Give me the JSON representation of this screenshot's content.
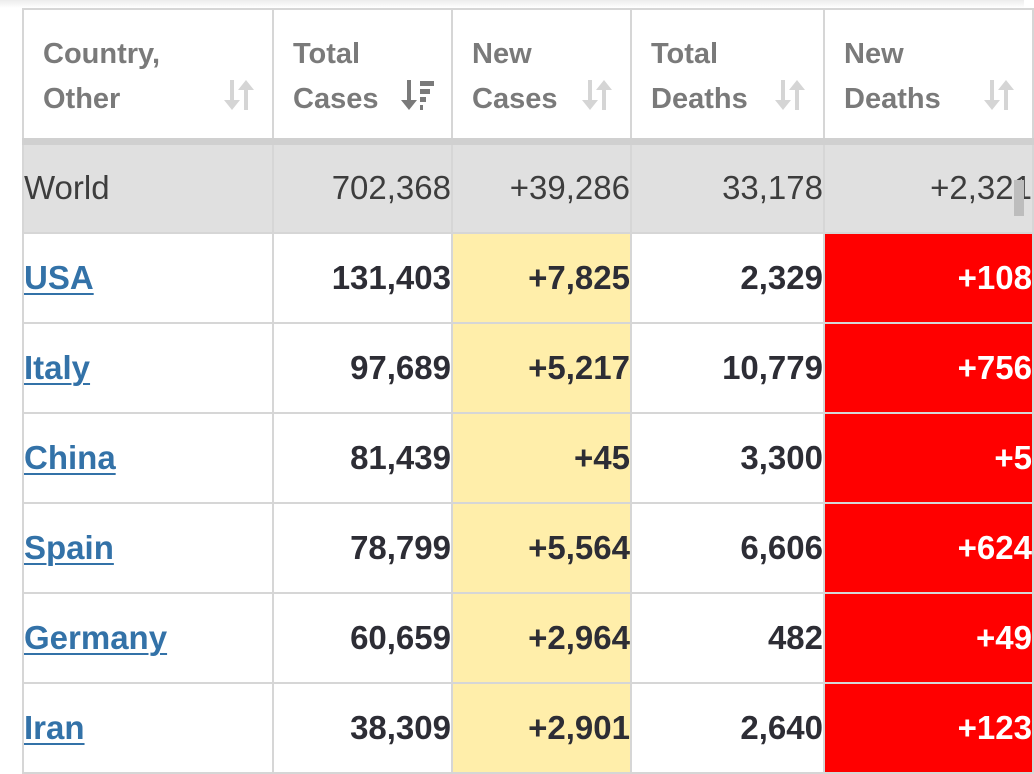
{
  "table": {
    "columns": [
      {
        "label": "Country,\nOther",
        "sort_icon": "sort-icon",
        "sort_state": "unsorted"
      },
      {
        "label": "Total\nCases",
        "sort_icon": "sort-descending-icon",
        "sort_state": "descending"
      },
      {
        "label": "New\nCases",
        "sort_icon": "sort-icon",
        "sort_state": "unsorted"
      },
      {
        "label": "Total\nDeaths",
        "sort_icon": "sort-icon",
        "sort_state": "unsorted"
      },
      {
        "label": "New\nDeaths",
        "sort_icon": "sort-icon",
        "sort_state": "unsorted"
      }
    ],
    "world": {
      "country": "World",
      "total_cases": "702,368",
      "new_cases": "+39,286",
      "total_deaths": "33,178",
      "new_deaths": "+2,321"
    },
    "rows": [
      {
        "country": "USA",
        "total_cases": "131,403",
        "new_cases": "+7,825",
        "total_deaths": "2,329",
        "new_deaths": "+108"
      },
      {
        "country": "Italy",
        "total_cases": "97,689",
        "new_cases": "+5,217",
        "total_deaths": "10,779",
        "new_deaths": "+756"
      },
      {
        "country": "China",
        "total_cases": "81,439",
        "new_cases": "+45",
        "total_deaths": "3,300",
        "new_deaths": "+5"
      },
      {
        "country": "Spain",
        "total_cases": "78,799",
        "new_cases": "+5,564",
        "total_deaths": "6,606",
        "new_deaths": "+624"
      },
      {
        "country": "Germany",
        "total_cases": "60,659",
        "new_cases": "+2,964",
        "total_deaths": "482",
        "new_deaths": "+49"
      },
      {
        "country": "Iran",
        "total_cases": "38,309",
        "new_cases": "+2,901",
        "total_deaths": "2,640",
        "new_deaths": "+123"
      }
    ]
  },
  "colors": {
    "header_text": "#7a7a7a",
    "world_row_bg": "#e0e0e0",
    "new_cases_bg": "#ffeeaa",
    "new_deaths_bg": "#ff0000",
    "country_link": "#3372a8",
    "value_text": "#2d2d35",
    "grid": "#d6d6d6"
  }
}
